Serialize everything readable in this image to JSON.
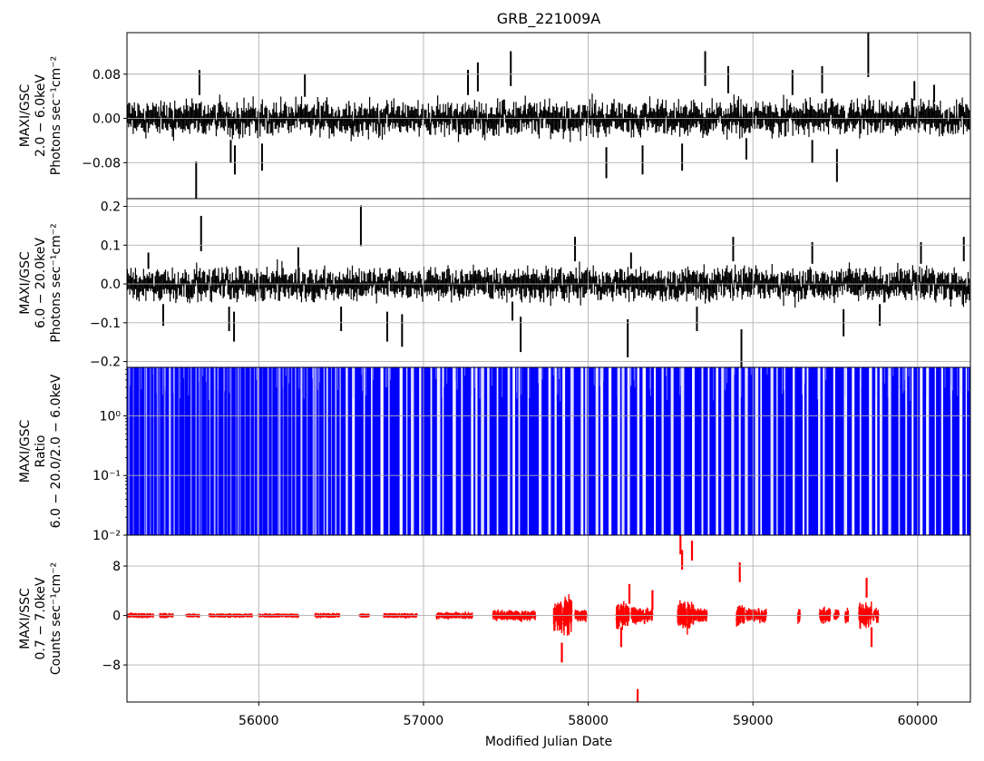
{
  "title": "GRB_221009A",
  "xlabel": "Modified Julian Date",
  "chart_data": [
    {
      "type": "line",
      "ylabel_lines": [
        "MAXI/GSC",
        "2.0 − 6.0keV",
        "Photons sec⁻¹cm⁻²"
      ],
      "ylim": [
        -0.145,
        0.155
      ],
      "yticks": [
        -0.08,
        0.0,
        0.08
      ],
      "ytick_labels": [
        "−0.08",
        "0.00",
        "0.08"
      ],
      "color": "#000000",
      "grid": true,
      "noise_sigma": 0.012,
      "err": 0.018,
      "spikes": [
        [
          55620,
          -0.12
        ],
        [
          55640,
          0.065
        ],
        [
          55830,
          -0.06
        ],
        [
          55855,
          -0.075
        ],
        [
          56020,
          -0.07
        ],
        [
          56280,
          0.06
        ],
        [
          57270,
          0.065
        ],
        [
          57330,
          0.075
        ],
        [
          57530,
          0.09
        ],
        [
          58110,
          -0.08
        ],
        [
          58330,
          -0.075
        ],
        [
          58570,
          -0.07
        ],
        [
          58710,
          0.09
        ],
        [
          58850,
          0.07
        ],
        [
          58960,
          -0.055
        ],
        [
          59240,
          0.065
        ],
        [
          59360,
          -0.06
        ],
        [
          59420,
          0.07
        ],
        [
          59510,
          -0.085
        ],
        [
          59700,
          0.115
        ],
        [
          59980,
          0.05
        ],
        [
          60100,
          0.045
        ]
      ]
    },
    {
      "type": "line",
      "ylabel_lines": [
        "MAXI/GSC",
        "6.0 − 20.0keV",
        "Photons sec⁻¹cm⁻²"
      ],
      "ylim": [
        -0.215,
        0.22
      ],
      "yticks": [
        -0.2,
        -0.1,
        0.0,
        0.1,
        0.2
      ],
      "ytick_labels": [
        "−0.2",
        "−0.1",
        "0.0",
        "0.1",
        "0.2"
      ],
      "color": "#000000",
      "grid": true,
      "noise_sigma": 0.016,
      "err": 0.025,
      "spikes": [
        [
          55330,
          0.06
        ],
        [
          55420,
          -0.08
        ],
        [
          55650,
          0.13
        ],
        [
          55820,
          -0.09
        ],
        [
          55850,
          -0.11
        ],
        [
          56240,
          0.07
        ],
        [
          56500,
          -0.09
        ],
        [
          56620,
          0.15
        ],
        [
          56780,
          -0.11
        ],
        [
          56870,
          -0.12
        ],
        [
          57540,
          -0.07
        ],
        [
          57590,
          -0.13
        ],
        [
          57920,
          0.09
        ],
        [
          58240,
          -0.14
        ],
        [
          58260,
          0.06
        ],
        [
          58660,
          -0.09
        ],
        [
          58880,
          0.09
        ],
        [
          58930,
          -0.18
        ],
        [
          59360,
          0.08
        ],
        [
          59550,
          -0.1
        ],
        [
          59770,
          -0.08
        ],
        [
          60020,
          0.08
        ],
        [
          60280,
          0.09
        ]
      ]
    },
    {
      "type": "area",
      "ylabel_lines": [
        "MAXI/GSC",
        "Ratio",
        "6.0 − 20.0/2.0 − 6.0keV"
      ],
      "yscale": "log",
      "ylim": [
        0.01,
        6.5
      ],
      "yticks": [
        0.01,
        0.1,
        1.0
      ],
      "ytick_labels": [
        "10⁻²",
        "10⁻¹",
        "10⁰"
      ],
      "color": "#0000ff",
      "grid": true
    },
    {
      "type": "scatter",
      "ylabel_lines": [
        "MAXI/SSC",
        "0.7 − 7.0keV",
        "Counts sec⁻¹cm⁻²"
      ],
      "ylim": [
        -14,
        13
      ],
      "yticks": [
        -8,
        0,
        8
      ],
      "ytick_labels": [
        "−8",
        "0",
        "8"
      ],
      "color": "#ff0000",
      "grid": true,
      "clusters": [
        [
          55200,
          55360,
          0.2
        ],
        [
          55400,
          55480,
          0.2
        ],
        [
          55560,
          55640,
          0.15
        ],
        [
          55700,
          55960,
          0.15
        ],
        [
          56000,
          56240,
          0.15
        ],
        [
          56340,
          56490,
          0.2
        ],
        [
          56610,
          56670,
          0.15
        ],
        [
          56760,
          56960,
          0.2
        ],
        [
          57080,
          57300,
          0.3
        ],
        [
          57420,
          57680,
          0.5
        ],
        [
          57790,
          57900,
          2.0
        ],
        [
          57920,
          57990,
          0.6
        ],
        [
          58170,
          58250,
          1.5
        ],
        [
          58260,
          58390,
          0.8
        ],
        [
          58540,
          58640,
          1.6
        ],
        [
          58640,
          58720,
          0.8
        ],
        [
          58900,
          58950,
          1.2
        ],
        [
          58960,
          59080,
          0.7
        ],
        [
          59270,
          59290,
          0.8
        ],
        [
          59400,
          59470,
          0.8
        ],
        [
          59490,
          59520,
          0.6
        ],
        [
          59560,
          59580,
          0.8
        ],
        [
          59640,
          59720,
          1.4
        ],
        [
          59730,
          59760,
          0.8
        ]
      ],
      "spikes": [
        [
          58560,
          11.5
        ],
        [
          58570,
          9.0
        ],
        [
          58630,
          10.5
        ],
        [
          58300,
          -13.5
        ],
        [
          57840,
          -6.0
        ],
        [
          58920,
          7.0
        ],
        [
          59690,
          4.5
        ],
        [
          59720,
          -3.5
        ],
        [
          58200,
          -3.5
        ],
        [
          58250,
          3.5
        ],
        [
          58390,
          2.5
        ]
      ]
    }
  ],
  "xaxis": {
    "xlim": [
      55200,
      60320
    ],
    "xticks": [
      56000,
      57000,
      58000,
      59000,
      60000
    ],
    "xtick_labels": [
      "56000",
      "57000",
      "58000",
      "59000",
      "60000"
    ]
  }
}
